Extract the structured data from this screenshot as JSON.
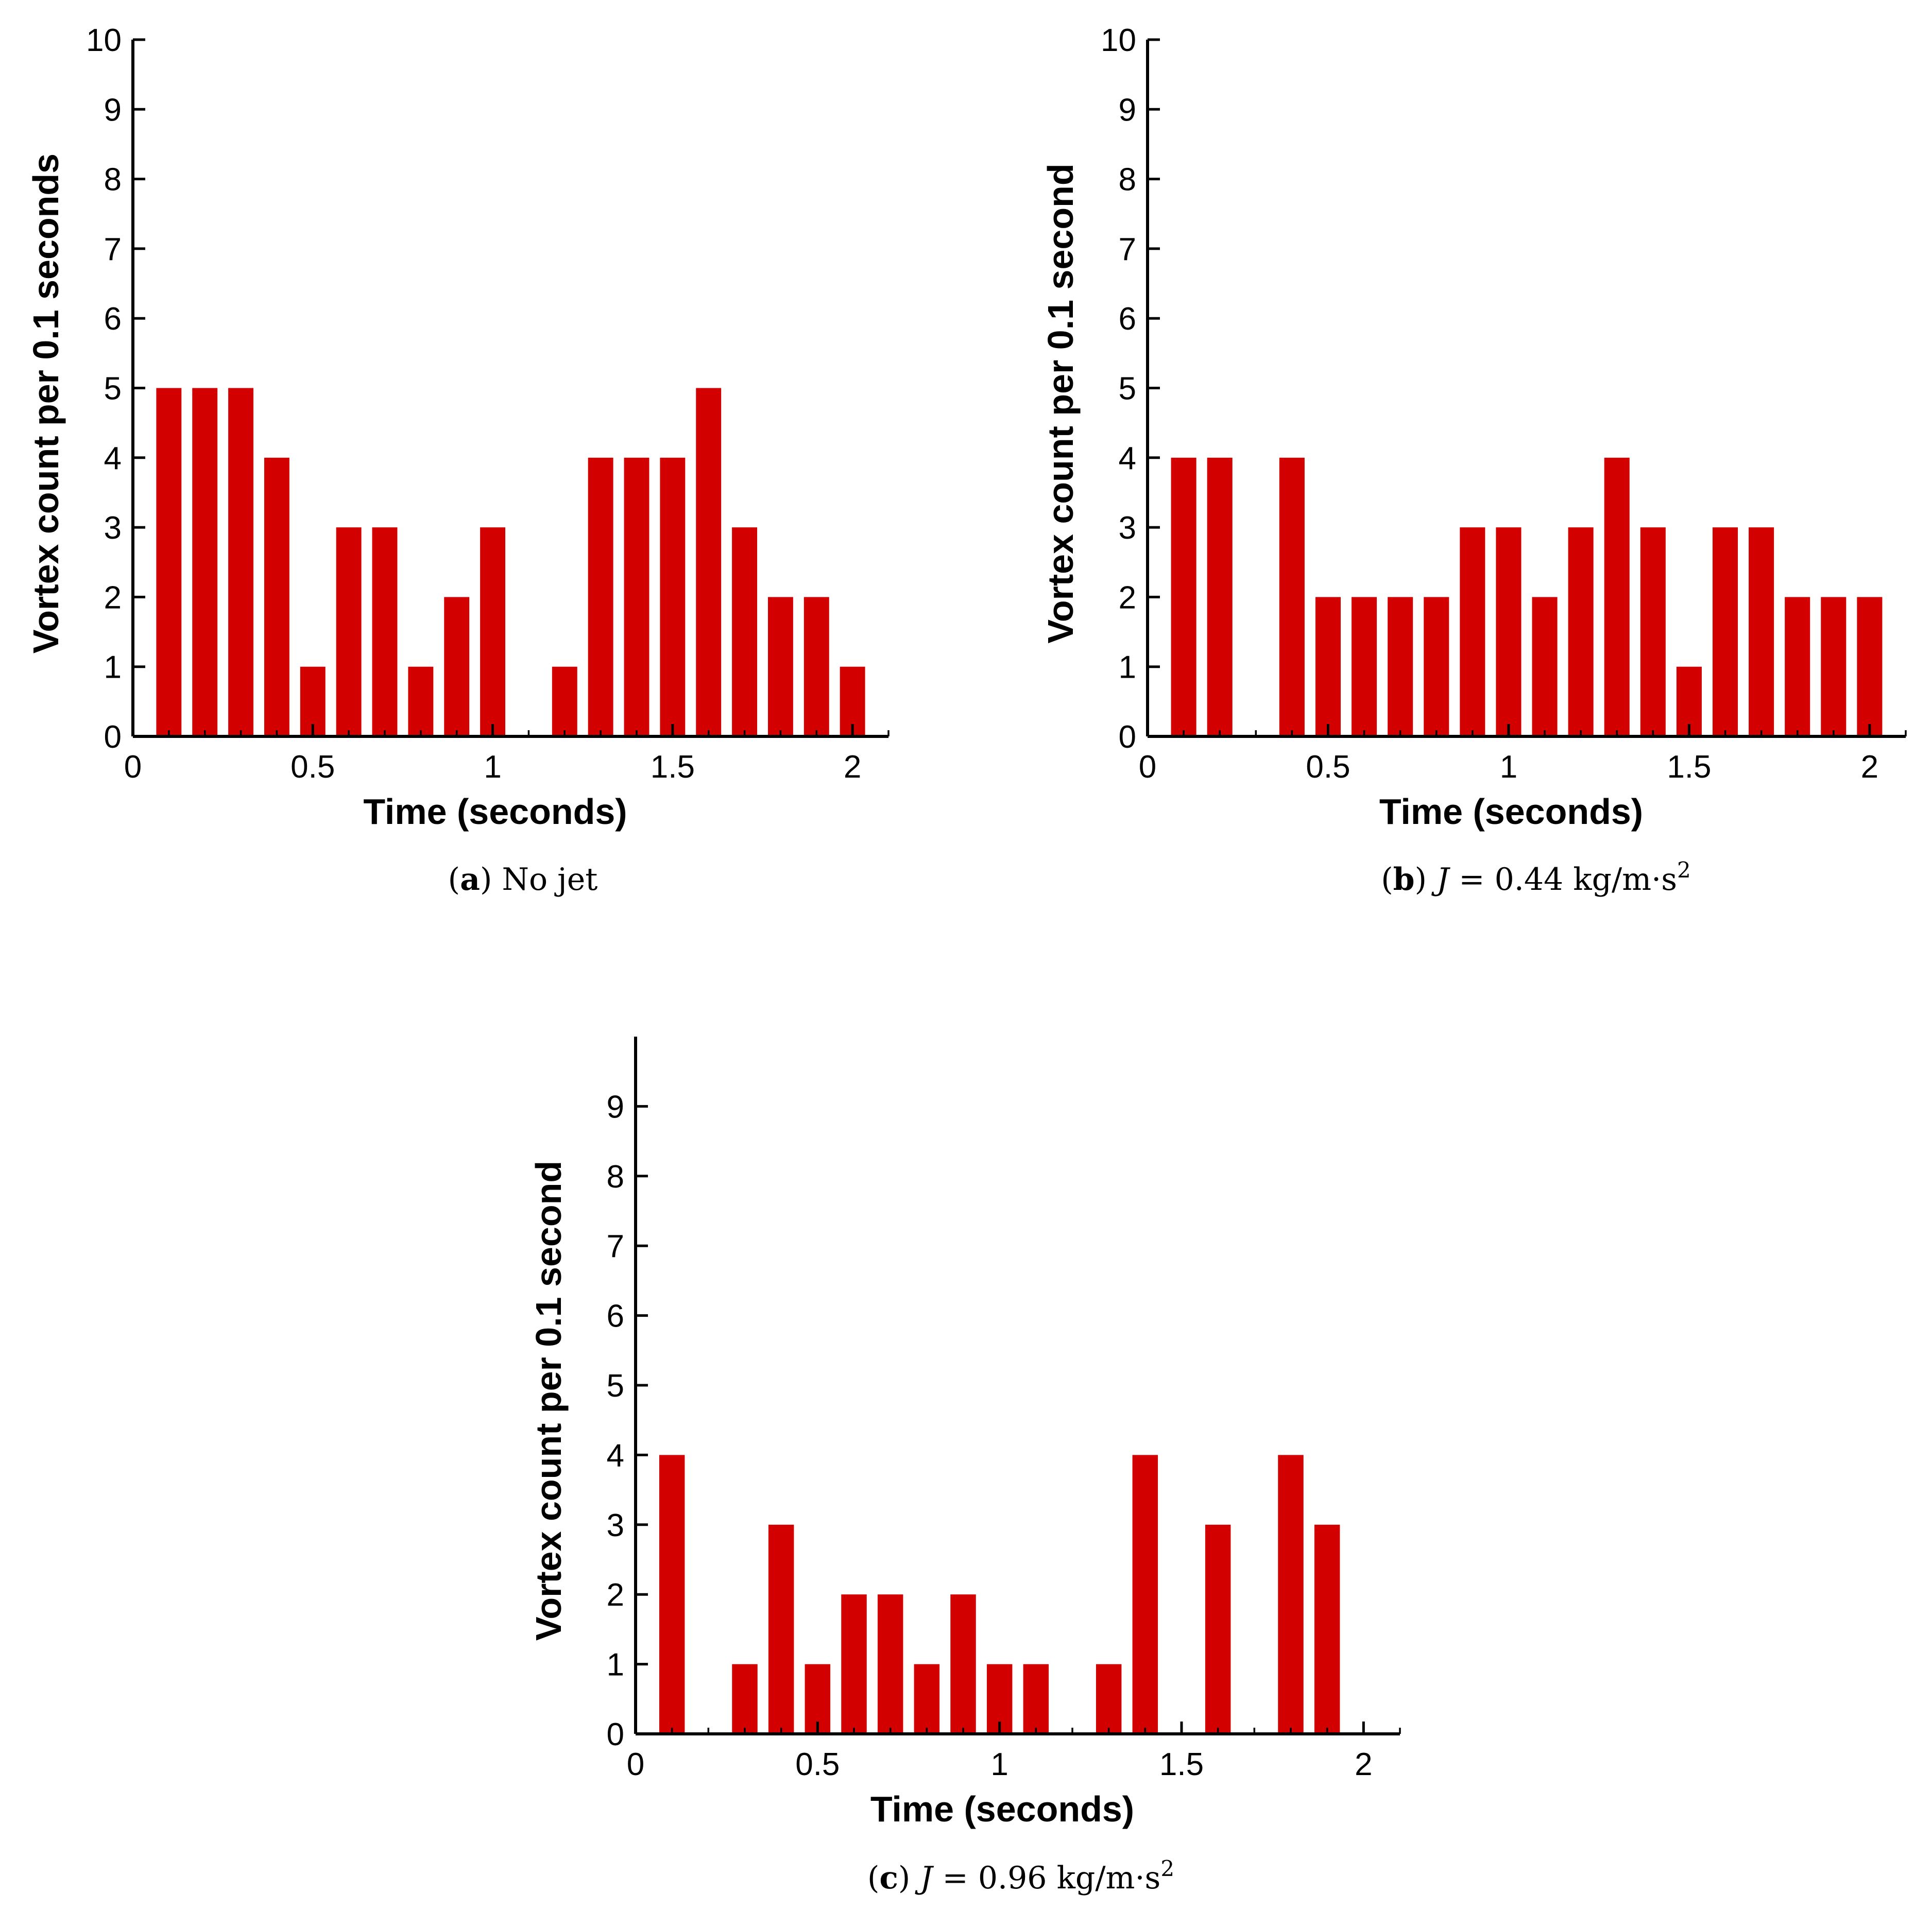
{
  "chart_data": [
    {
      "type": "bar",
      "panel_label": "a",
      "caption_text": "No jet",
      "caption_parts": {
        "pre": "",
        "var": "",
        "eq": "",
        "unit": "",
        "sup": ""
      },
      "xlabel": "Time (seconds)",
      "ylabel": "Vortex count per 0.1 seconds",
      "xlim": [
        0,
        2.1
      ],
      "ylim": [
        0,
        10
      ],
      "xticks": [
        0,
        0.5,
        1,
        1.5,
        2
      ],
      "xtick_labels": [
        "0",
        "0.5",
        "1",
        "1.5",
        "2"
      ],
      "yticks": [
        0,
        1,
        2,
        3,
        4,
        5,
        6,
        7,
        8,
        9,
        10
      ],
      "ytick_labels": [
        "0",
        "1",
        "2",
        "3",
        "4",
        "5",
        "6",
        "7",
        "8",
        "9",
        "10"
      ],
      "bar_width": 0.07,
      "x": [
        0.1,
        0.2,
        0.3,
        0.4,
        0.5,
        0.6,
        0.7,
        0.8,
        0.9,
        1.0,
        1.2,
        1.3,
        1.4,
        1.5,
        1.6,
        1.7,
        1.8,
        1.9,
        2.0
      ],
      "values": [
        5,
        5,
        5,
        4,
        1,
        3,
        3,
        1,
        2,
        3,
        1,
        4,
        4,
        4,
        5,
        3,
        2,
        2,
        1
      ],
      "color": "#d30000"
    },
    {
      "type": "bar",
      "panel_label": "b",
      "caption_text": "",
      "caption_parts": {
        "pre": "",
        "var": "J",
        "eq": " = 0.44",
        "unit": "kg/m·s",
        "sup": "2"
      },
      "xlabel": "Time (seconds)",
      "ylabel": "Vortex count per 0.1 second",
      "xlim": [
        0,
        2.1
      ],
      "ylim": [
        0,
        10
      ],
      "xticks": [
        0,
        0.5,
        1,
        1.5,
        2
      ],
      "xtick_labels": [
        "0",
        "0.5",
        "1",
        "1.5",
        "2"
      ],
      "yticks": [
        0,
        1,
        2,
        3,
        4,
        5,
        6,
        7,
        8,
        9,
        10
      ],
      "ytick_labels": [
        "0",
        "1",
        "2",
        "3",
        "4",
        "5",
        "6",
        "7",
        "8",
        "9",
        "10"
      ],
      "bar_width": 0.07,
      "x": [
        0.1,
        0.2,
        0.4,
        0.5,
        0.6,
        0.7,
        0.8,
        0.9,
        1.0,
        1.1,
        1.2,
        1.3,
        1.4,
        1.5,
        1.6,
        1.7,
        1.8,
        1.9,
        2.0
      ],
      "values": [
        4,
        4,
        4,
        2,
        2,
        2,
        2,
        3,
        3,
        2,
        3,
        4,
        3,
        1,
        3,
        3,
        2,
        2,
        2
      ],
      "color": "#d30000"
    },
    {
      "type": "bar",
      "panel_label": "c",
      "caption_text": "",
      "caption_parts": {
        "pre": "",
        "var": "J",
        "eq": " = 0.96",
        "unit": "kg/m·s",
        "sup": "2"
      },
      "xlabel": "Time (seconds)",
      "ylabel": "Vortex count per 0.1 second",
      "xlim": [
        0,
        2.1
      ],
      "ylim": [
        0,
        10
      ],
      "xticks": [
        0,
        0.5,
        1,
        1.5,
        2
      ],
      "xtick_labels": [
        "0",
        "0.5",
        "1",
        "1.5",
        "2"
      ],
      "yticks": [
        0,
        1,
        2,
        3,
        4,
        5,
        6,
        7,
        8,
        9
      ],
      "ytick_labels": [
        "0",
        "1",
        "2",
        "3",
        "4",
        "5",
        "6",
        "7",
        "8",
        "9"
      ],
      "bar_width": 0.07,
      "x": [
        0.1,
        0.3,
        0.4,
        0.5,
        0.6,
        0.7,
        0.8,
        0.9,
        1.0,
        1.1,
        1.3,
        1.4,
        1.6,
        1.8,
        1.9
      ],
      "values": [
        4,
        1,
        3,
        1,
        2,
        2,
        1,
        2,
        1,
        1,
        1,
        4,
        3,
        4,
        3
      ],
      "color": "#d30000"
    }
  ]
}
